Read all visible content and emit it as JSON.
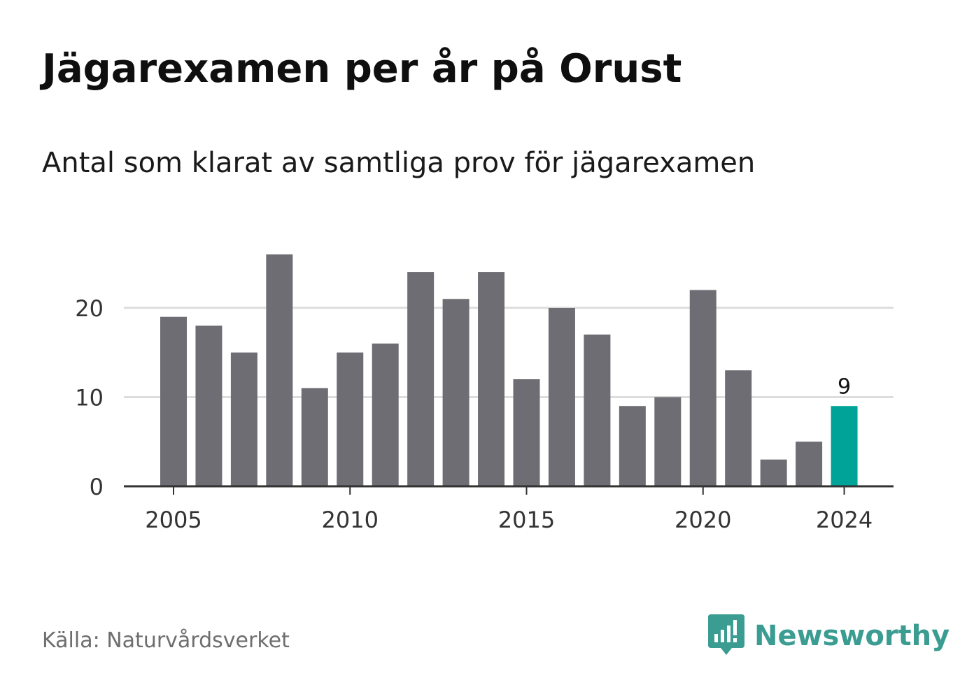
{
  "title": "Jägarexamen per år på Orust",
  "subtitle": "Antal som klarat av samtliga prov för jägarexamen",
  "source": "Källa: Naturvårdsverket",
  "brand": {
    "name": "Newsworthy",
    "icon": "newsworthy-logo-icon",
    "color": "#3b9c92"
  },
  "colors": {
    "bar": "#6e6d73",
    "highlight": "#00a398",
    "grid": "#dddddd",
    "axis": "#333333"
  },
  "chart_data": {
    "type": "bar",
    "x": [
      2005,
      2006,
      2007,
      2008,
      2009,
      2010,
      2011,
      2012,
      2013,
      2014,
      2015,
      2016,
      2017,
      2018,
      2019,
      2020,
      2021,
      2022,
      2023,
      2024
    ],
    "values": [
      19,
      18,
      15,
      26,
      11,
      15,
      16,
      24,
      21,
      24,
      12,
      20,
      17,
      9,
      10,
      22,
      13,
      3,
      5,
      9
    ],
    "highlight": {
      "x": 2024,
      "label": "9"
    },
    "xticks": [
      "2005",
      "2010",
      "2015",
      "2020",
      "2024"
    ],
    "yticks": [
      "0",
      "10",
      "20"
    ],
    "ylim": [
      0,
      26
    ],
    "grid": true
  }
}
